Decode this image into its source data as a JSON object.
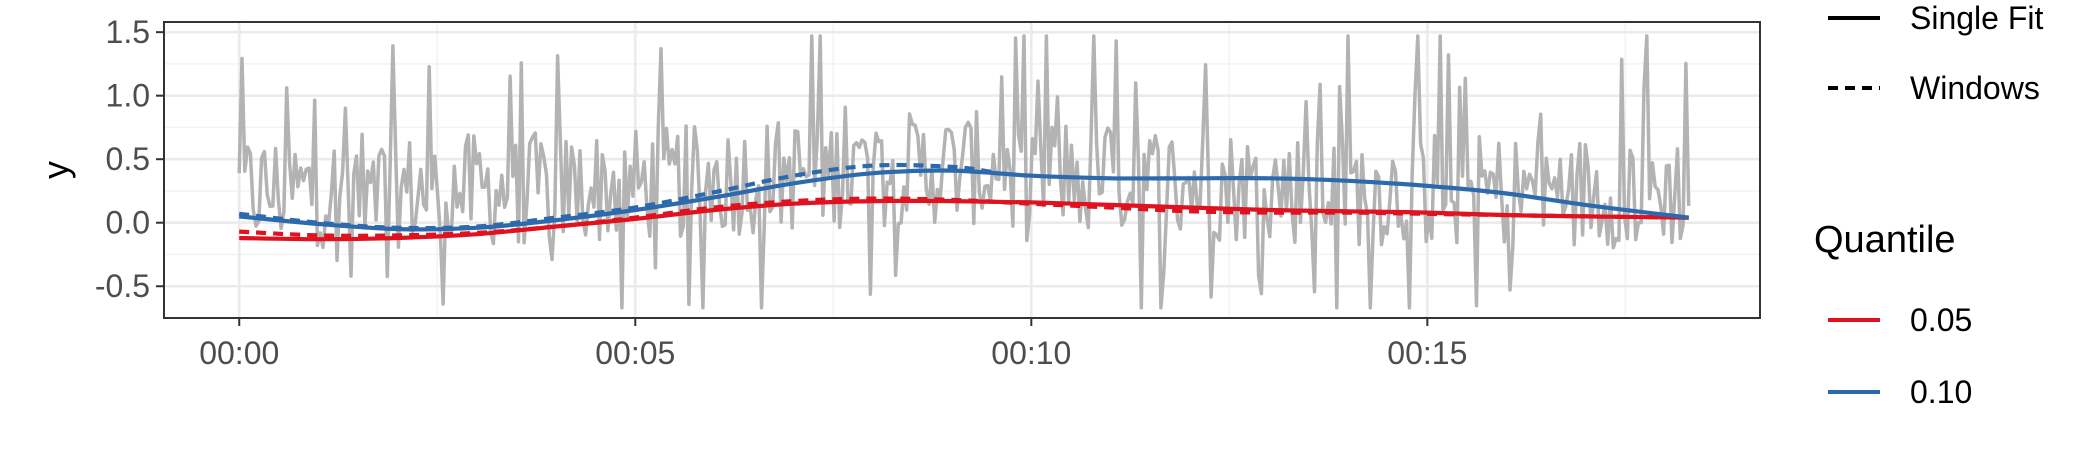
{
  "chart_data": {
    "type": "line",
    "title": "",
    "xlabel": "",
    "ylabel": "y",
    "x_ticks": [
      "00:00",
      "00:05",
      "00:10",
      "00:15"
    ],
    "x_tick_minutes": [
      0,
      5,
      10,
      15
    ],
    "x_range_minutes": [
      -0.95,
      19.2
    ],
    "y_ticks": [
      -0.5,
      0.0,
      0.5,
      1.0,
      1.5
    ],
    "y_tick_labels": [
      "-0.5",
      "0.0",
      "0.5",
      "1.0",
      "1.5"
    ],
    "ylim": [
      -0.75,
      1.58
    ],
    "grid": true,
    "legend_placement": "right",
    "legend": {
      "linetype_entries": [
        {
          "label": "Single Fit",
          "dash": "solid"
        },
        {
          "label": "Windows",
          "dash": "dashed"
        }
      ],
      "color_title": "Quantile",
      "color_entries": [
        {
          "label": "0.05",
          "color": "#e0121f"
        },
        {
          "label": "0.10",
          "color": "#2c6aad"
        }
      ]
    },
    "raw_series": {
      "color": "#b3b3b3",
      "x_start_minutes": 0,
      "x_end_minutes": 18.3,
      "n_points": 520,
      "y_min": -0.67,
      "y_max": 1.47
    },
    "series": [
      {
        "quantile": "0.05",
        "fit": "Single Fit",
        "color": "#e0121f",
        "dash": "solid",
        "x": [
          0,
          1,
          2,
          3,
          4,
          5,
          6,
          7,
          8,
          9,
          10,
          11,
          12,
          13,
          14,
          15,
          16,
          17,
          18.3
        ],
        "y": [
          -0.12,
          -0.13,
          -0.12,
          -0.09,
          -0.03,
          0.03,
          0.1,
          0.15,
          0.17,
          0.17,
          0.16,
          0.14,
          0.12,
          0.1,
          0.09,
          0.08,
          0.06,
          0.05,
          0.04
        ]
      },
      {
        "quantile": "0.05",
        "fit": "Windows",
        "color": "#e0121f",
        "dash": "dashed",
        "x": [
          0,
          1,
          2,
          3,
          4,
          5,
          6,
          7,
          8,
          9,
          10,
          11,
          12,
          13,
          14,
          15,
          16,
          17,
          18.3
        ],
        "y": [
          -0.07,
          -0.1,
          -0.1,
          -0.08,
          -0.03,
          0.04,
          0.12,
          0.17,
          0.19,
          0.18,
          0.15,
          0.12,
          0.09,
          0.08,
          0.08,
          0.07,
          0.06,
          0.05,
          0.04
        ]
      },
      {
        "quantile": "0.10",
        "fit": "Single Fit",
        "color": "#2c6aad",
        "dash": "solid",
        "x": [
          0,
          1,
          2,
          3,
          4,
          5,
          6,
          7,
          8,
          9,
          10,
          11,
          12,
          13,
          14,
          15,
          16,
          17,
          18.3
        ],
        "y": [
          0.05,
          -0.01,
          -0.05,
          -0.04,
          0.02,
          0.1,
          0.2,
          0.31,
          0.39,
          0.41,
          0.37,
          0.35,
          0.35,
          0.35,
          0.33,
          0.29,
          0.23,
          0.14,
          0.04
        ]
      },
      {
        "quantile": "0.10",
        "fit": "Windows",
        "color": "#2c6aad",
        "dash": "dashed",
        "x": [
          0,
          1,
          2,
          3,
          4,
          5,
          6,
          7,
          8,
          9,
          9.5
        ],
        "y": [
          0.07,
          0.0,
          -0.04,
          -0.03,
          0.04,
          0.12,
          0.24,
          0.37,
          0.45,
          0.44,
          0.4
        ]
      }
    ]
  }
}
